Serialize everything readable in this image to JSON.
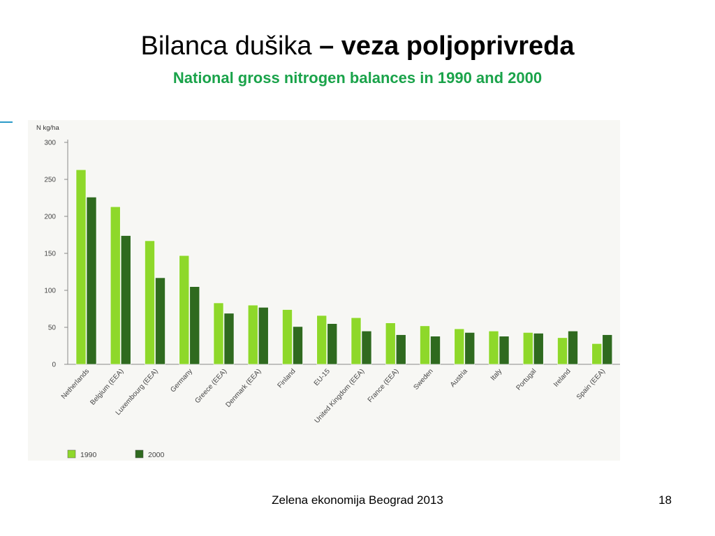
{
  "slide": {
    "title_plain": "Bilanca dušika ",
    "title_bold": "– veza poljoprivreda",
    "subtitle": "National gross nitrogen balances in 1990 and 2000",
    "footer": "Zelena ekonomija Beograd 2013",
    "page_number": "18"
  },
  "chart_data": {
    "type": "bar",
    "title": "",
    "ylabel": "N kg/ha",
    "xlabel": "",
    "ylim": [
      0,
      300
    ],
    "yticks": [
      0,
      50,
      100,
      150,
      200,
      250,
      300
    ],
    "grid": false,
    "legend_position": "bottom-left",
    "categories": [
      "Netherlands",
      "Belgium (EEA)",
      "Luxembourg (EEA)",
      "Germany",
      "Greece (EEA)",
      "Denmark (EEA)",
      "Finland",
      "EU-15",
      "United Kingdom (EEA)",
      "France (EEA)",
      "Sweden",
      "Austria",
      "Italy",
      "Portugal",
      "Ireland",
      "Spain (EEA)"
    ],
    "series": [
      {
        "name": "1990",
        "color": "#8ed82a",
        "values": [
          263,
          213,
          167,
          147,
          83,
          80,
          74,
          66,
          63,
          56,
          52,
          48,
          45,
          43,
          36,
          28
        ]
      },
      {
        "name": "2000",
        "color": "#2f6a1f",
        "values": [
          226,
          174,
          117,
          105,
          69,
          77,
          51,
          55,
          45,
          40,
          38,
          43,
          38,
          42,
          45,
          40
        ]
      }
    ]
  }
}
